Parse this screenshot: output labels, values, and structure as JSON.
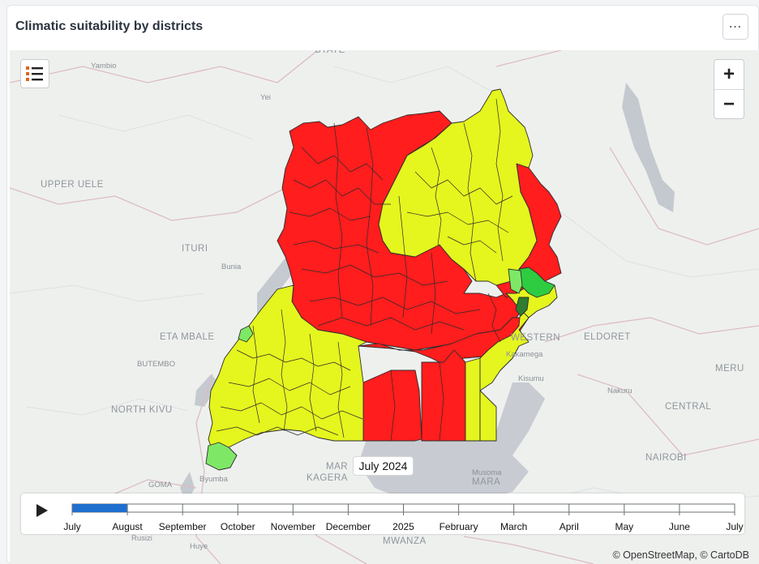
{
  "widget": {
    "title": "Climatic suitability by districts",
    "menu_icon": "ellipsis-icon"
  },
  "map": {
    "labels": {
      "state": "STATE",
      "yambio": "Yambio",
      "yei": "Yei",
      "upper_uele": "UPPER UELE",
      "ituri": "ITURI",
      "bunia": "Bunia",
      "eta_mbale": "ETA MBALE",
      "butembo": "BUTEMBO",
      "north_kivu": "NORTH KIVU",
      "goma": "GOMA",
      "byumba": "Byumba",
      "rusizi": "Rusizi",
      "huye": "Huye",
      "kagera": "KAGERA",
      "mara_left": "MAR",
      "mara": "MARA",
      "musoma": "Musoma",
      "mwanza": "MWANZA",
      "western": "WESTERN",
      "eldoret": "ELDORET",
      "kakamega": "Kakamega",
      "kisumu": "Kisumu",
      "nakuru": "Nakuru",
      "central": "CENTRAL",
      "nairobi": "NAIROBI",
      "meru": "MERU"
    },
    "legend_colors": {
      "high": "#2ecc40",
      "moderate": "#e5f51e",
      "low": "#ff1d1d",
      "dark": "#2e7d32"
    },
    "zoom_in": "+",
    "zoom_out": "−",
    "tooltip": "July 2024",
    "attribution": "© OpenStreetMap, © CartoDB"
  },
  "timeline": {
    "ticks": [
      "July",
      "August",
      "September",
      "October",
      "November",
      "December",
      "2025",
      "February",
      "March",
      "April",
      "May",
      "June",
      "July"
    ],
    "selected_index": 0,
    "progress_fraction": 0.083
  }
}
